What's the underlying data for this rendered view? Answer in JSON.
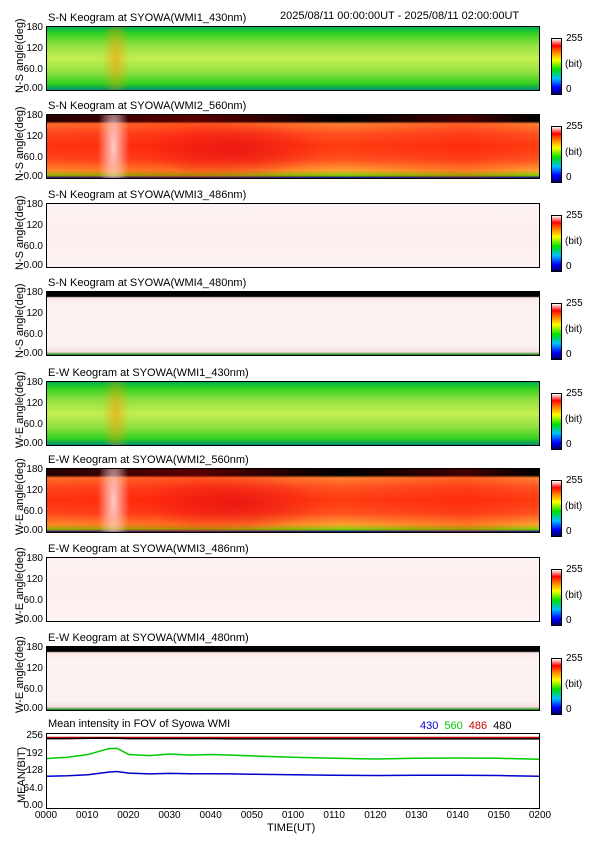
{
  "header": {
    "date_range": "2025/08/11 00:00:00UT - 2025/08/11 02:00:00UT"
  },
  "panels": [
    {
      "title": "S-N Keogram at SYOWA(WMI1_430nm)",
      "ylabel": "N-S angle(deg)",
      "style": "green"
    },
    {
      "title": "S-N Keogram at SYOWA(WMI2_560nm)",
      "ylabel": "N-S angle(deg)",
      "style": "red"
    },
    {
      "title": "S-N Keogram at SYOWA(WMI3_486nm)",
      "ylabel": "N-S angle(deg)",
      "style": "pale"
    },
    {
      "title": "S-N Keogram at SYOWA(WMI4_480nm)",
      "ylabel": "N-S angle(deg)",
      "style": "pale-dark"
    },
    {
      "title": "E-W Keogram at SYOWA(WMI1_430nm)",
      "ylabel": "W-E angle(deg)",
      "style": "green"
    },
    {
      "title": "E-W Keogram at SYOWA(WMI2_560nm)",
      "ylabel": "W-E angle(deg)",
      "style": "red"
    },
    {
      "title": "E-W Keogram at SYOWA(WMI3_486nm)",
      "ylabel": "W-E angle(deg)",
      "style": "pale"
    },
    {
      "title": "E-W Keogram at SYOWA(WMI4_480nm)",
      "ylabel": "W-E angle(deg)",
      "style": "pale-dark"
    }
  ],
  "keogram_yticks": [
    "180",
    "120",
    "60.0",
    "0.00"
  ],
  "colorbar": {
    "max": "255",
    "unit": "(bit)",
    "min": "0"
  },
  "mean": {
    "title": "Mean intensity in FOV of Syowa WMI",
    "ylabel": "MEAN(BIT)",
    "yticks": [
      "256",
      "192",
      "128",
      "64.0",
      "0.00"
    ],
    "legend": [
      {
        "label": "430",
        "color": "#0000cc"
      },
      {
        "label": "560",
        "color": "#00cc00"
      },
      {
        "label": "486",
        "color": "#cc0000"
      },
      {
        "label": "480",
        "color": "#000000"
      }
    ]
  },
  "xaxis": {
    "label": "TIME(UT)",
    "ticks": [
      "0000",
      "0010",
      "0020",
      "0030",
      "0040",
      "0050",
      "0100",
      "0110",
      "0120",
      "0130",
      "0140",
      "0150",
      "0200"
    ]
  },
  "chart_data": {
    "type": "line",
    "title": "Mean intensity in FOV of Syowa WMI",
    "xlabel": "TIME(UT)",
    "ylabel": "MEAN(BIT)",
    "x": [
      0,
      5,
      10,
      15,
      17,
      20,
      25,
      30,
      35,
      40,
      45,
      50,
      60,
      70,
      80,
      90,
      100,
      110,
      120
    ],
    "xlim": [
      0,
      120
    ],
    "ylim": [
      0,
      256
    ],
    "series": [
      {
        "name": "430",
        "color": "#0000cc",
        "values": [
          108,
          110,
          114,
          124,
          126,
          120,
          117,
          119,
          118,
          118,
          117,
          116,
          114,
          112,
          111,
          112,
          112,
          111,
          108
        ]
      },
      {
        "name": "560",
        "color": "#00cc00",
        "values": [
          175,
          180,
          190,
          212,
          214,
          190,
          186,
          192,
          188,
          190,
          188,
          185,
          180,
          176,
          173,
          176,
          177,
          176,
          172
        ]
      },
      {
        "name": "486",
        "color": "#cc0000",
        "values": [
          254,
          254,
          254,
          254,
          254,
          254,
          254,
          254,
          254,
          254,
          254,
          254,
          254,
          254,
          254,
          254,
          254,
          254,
          254
        ]
      },
      {
        "name": "480",
        "color": "#000000",
        "values": [
          250,
          250,
          251,
          251,
          251,
          250,
          250,
          250,
          250,
          250,
          249,
          249,
          249,
          249,
          249,
          249,
          249,
          249,
          249
        ]
      }
    ]
  }
}
